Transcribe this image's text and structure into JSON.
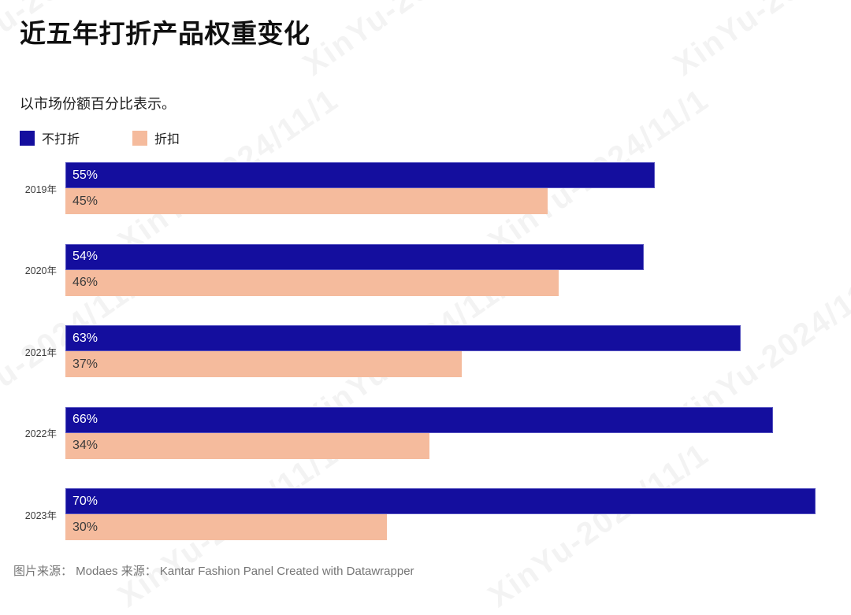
{
  "title": "近五年打折产品权重变化",
  "subtitle": "以市场份额百分比表示。",
  "legend": [
    {
      "label": "不打折",
      "color": "#140e9e"
    },
    {
      "label": "折扣",
      "color": "#f5bb9d"
    }
  ],
  "chart_data": {
    "type": "bar",
    "orientation": "horizontal",
    "title": "近五年打折产品权重变化",
    "subtitle": "以市场份额百分比表示。",
    "categories": [
      "2019年",
      "2020年",
      "2021年",
      "2022年",
      "2023年"
    ],
    "series": [
      {
        "name": "不打折",
        "color": "#140e9e",
        "values": [
          55,
          54,
          63,
          66,
          70
        ]
      },
      {
        "name": "折扣",
        "color": "#f5bb9d",
        "values": [
          45,
          46,
          37,
          34,
          30
        ]
      }
    ],
    "value_suffix": "%",
    "xlim": [
      0,
      100
    ],
    "grid": false,
    "legend_position": "top",
    "labels_inside_bars": true
  },
  "footer": "图片来源： Modaes 来源： Kantar Fashion Panel Created with Datawrapper",
  "watermark": {
    "text": "XinYu-2024/11/1"
  },
  "colors": {
    "background": "#ffffff",
    "bar_primary": "#140e9e",
    "bar_secondary": "#f5bb9d",
    "title_text": "#101010",
    "year_label": "#3c3c3c",
    "footer_text": "#757575"
  }
}
